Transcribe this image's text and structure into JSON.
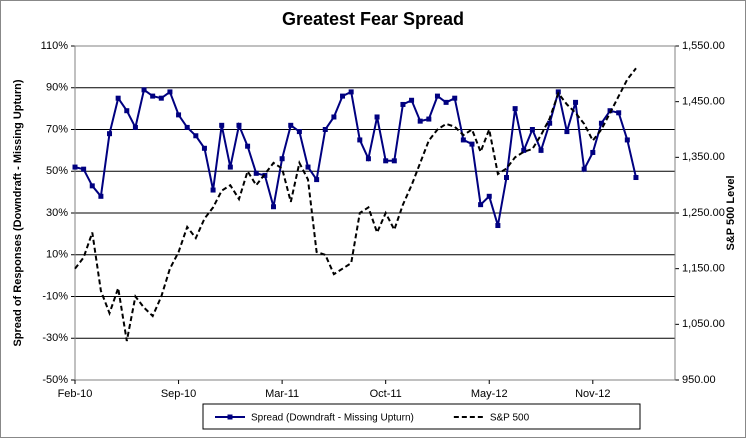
{
  "chart_data": {
    "type": "line",
    "title": "Greatest Fear Spread",
    "y_label": "Spread of Responses (Downdraft - Missing Upturn)",
    "y2_label": "S&P 500 Level",
    "categories": [
      "Feb-10",
      null,
      null,
      null,
      null,
      null,
      null,
      null,
      null,
      null,
      null,
      null,
      "Sep-10",
      null,
      null,
      null,
      null,
      null,
      null,
      null,
      null,
      null,
      null,
      null,
      "Mar-11",
      null,
      null,
      null,
      null,
      null,
      null,
      null,
      null,
      null,
      null,
      null,
      "Oct-11",
      null,
      null,
      null,
      null,
      null,
      null,
      null,
      null,
      null,
      null,
      null,
      "May-12",
      null,
      null,
      null,
      null,
      null,
      null,
      null,
      null,
      null,
      null,
      null,
      "Nov-12",
      null,
      null,
      null,
      null,
      null
    ],
    "series": [
      {
        "name": "Spread (Downdraft - Missing Upturn)",
        "color": "#000080",
        "style": "solid",
        "marker": "square",
        "values": [
          52,
          51,
          43,
          38,
          68,
          85,
          79,
          71,
          89,
          86,
          85,
          88,
          77,
          71,
          67,
          61,
          41,
          72,
          52,
          72,
          62,
          49,
          48,
          33,
          56,
          72,
          69,
          52,
          46,
          70,
          76,
          86,
          88,
          65,
          56,
          76,
          55,
          55,
          82,
          84,
          74,
          75,
          86,
          83,
          85,
          65,
          63,
          34,
          38,
          24,
          47,
          80,
          60,
          70,
          60,
          73,
          88,
          69,
          83,
          51,
          59,
          73,
          79,
          78,
          65,
          47
        ]
      },
      {
        "name": "S&P 500",
        "color": "#000000",
        "style": "dashed",
        "axis": "y2",
        "values": [
          1150,
          1170,
          1215,
          1110,
          1070,
          1115,
          1020,
          1100,
          1080,
          1065,
          1100,
          1150,
          1180,
          1225,
          1205,
          1240,
          1260,
          1290,
          1300,
          1275,
          1325,
          1300,
          1320,
          1340,
          1330,
          1270,
          1340,
          1310,
          1180,
          1175,
          1140,
          1150,
          1160,
          1250,
          1260,
          1215,
          1250,
          1220,
          1265,
          1300,
          1340,
          1380,
          1400,
          1410,
          1405,
          1390,
          1400,
          1360,
          1400,
          1320,
          1330,
          1350,
          1360,
          1365,
          1390,
          1420,
          1465,
          1445,
          1430,
          1410,
          1380,
          1400,
          1430,
          1460,
          1490,
          1510
        ]
      }
    ],
    "ylim": [
      -50,
      110
    ],
    "yticks": [
      {
        "value": -50,
        "label": "-50%"
      },
      {
        "value": -30,
        "label": "-30%"
      },
      {
        "value": -10,
        "label": "-10%"
      },
      {
        "value": 10,
        "label": "10%"
      },
      {
        "value": 30,
        "label": "30%"
      },
      {
        "value": 50,
        "label": "50%"
      },
      {
        "value": 70,
        "label": "70%"
      },
      {
        "value": 90,
        "label": "90%"
      },
      {
        "value": 110,
        "label": "110%"
      }
    ],
    "y2lim": [
      950,
      1550
    ],
    "y2ticks": [
      {
        "value": 950,
        "label": "950.00"
      },
      {
        "value": 1050,
        "label": "1,050.00"
      },
      {
        "value": 1150,
        "label": "1,150.00"
      },
      {
        "value": 1250,
        "label": "1,250.00"
      },
      {
        "value": 1350,
        "label": "1,350.00"
      },
      {
        "value": 1450,
        "label": "1,450.00"
      },
      {
        "value": 1550,
        "label": "1,550.00"
      }
    ],
    "grid": true,
    "legend": "bottom"
  }
}
